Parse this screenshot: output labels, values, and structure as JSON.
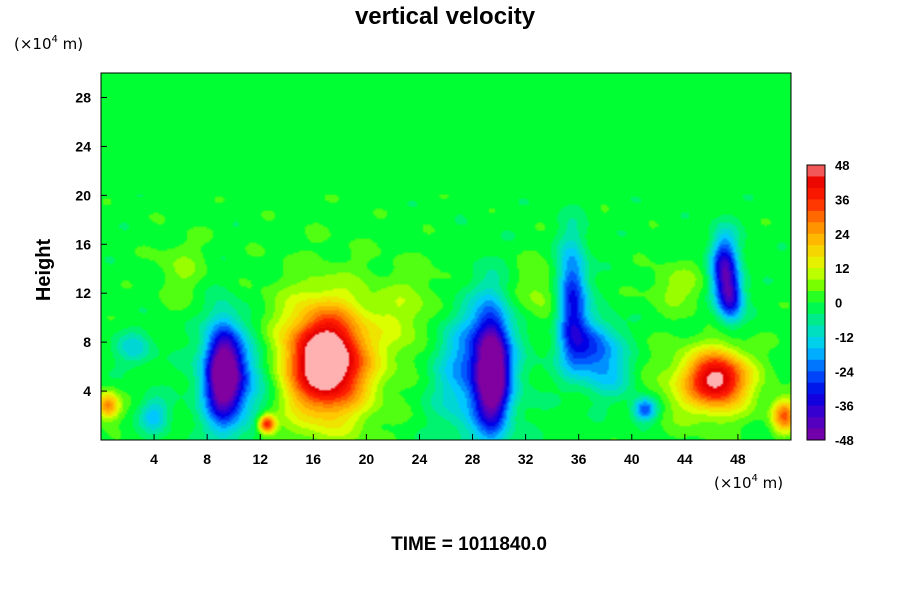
{
  "chart_data": {
    "type": "heatmap",
    "title": "vertical velocity",
    "ylabel": "Height",
    "x_unit_prefix": "(×10",
    "x_unit_exp": "4",
    "x_unit_suffix": " m)",
    "y_unit_prefix": "(×10",
    "y_unit_exp": "4",
    "y_unit_suffix": " m)",
    "xlim": [
      0,
      52
    ],
    "ylim": [
      0,
      30
    ],
    "x_ticks": [
      4,
      8,
      12,
      16,
      20,
      24,
      28,
      32,
      36,
      40,
      44,
      48
    ],
    "y_ticks": [
      4,
      8,
      12,
      16,
      20,
      24,
      28
    ],
    "colorbar": {
      "min": -48,
      "max": 48,
      "ticks": [
        48,
        36,
        24,
        12,
        0,
        -12,
        -24,
        -36,
        -48
      ]
    },
    "features": [
      {
        "x": 17,
        "y": 6.5,
        "rx": 3.0,
        "ry": 4.2,
        "value": 50
      },
      {
        "x": 16.8,
        "y": 6.5,
        "rx": 5.0,
        "ry": 7.0,
        "value": 14
      },
      {
        "x": 9.2,
        "y": 5.5,
        "rx": 1.4,
        "ry": 4.5,
        "value": -44
      },
      {
        "x": 10.2,
        "y": 5.0,
        "rx": 2.8,
        "ry": 4.0,
        "value": -24
      },
      {
        "x": 29.5,
        "y": 5.5,
        "rx": 1.3,
        "ry": 5.0,
        "value": -48
      },
      {
        "x": 28.3,
        "y": 6.0,
        "rx": 3.2,
        "ry": 6.0,
        "value": -24
      },
      {
        "x": 35.5,
        "y": 11.5,
        "rx": 1.2,
        "ry": 5.0,
        "value": -32
      },
      {
        "x": 37,
        "y": 7.5,
        "rx": 2.2,
        "ry": 2.5,
        "value": -26
      },
      {
        "x": 47,
        "y": 14,
        "rx": 1.1,
        "ry": 3.0,
        "value": -38
      },
      {
        "x": 47.5,
        "y": 11.5,
        "rx": 1.0,
        "ry": 2.0,
        "value": -28
      },
      {
        "x": 46.5,
        "y": 5.0,
        "rx": 2.3,
        "ry": 2.3,
        "value": 38
      },
      {
        "x": 45.5,
        "y": 4.5,
        "rx": 4.0,
        "ry": 3.5,
        "value": 14
      },
      {
        "x": 12.5,
        "y": 1.3,
        "rx": 0.7,
        "ry": 0.8,
        "value": 40
      },
      {
        "x": 51.5,
        "y": 2.0,
        "rx": 1.0,
        "ry": 1.5,
        "value": 30
      },
      {
        "x": 0.5,
        "y": 2.8,
        "rx": 1.0,
        "ry": 1.2,
        "value": 28
      },
      {
        "x": 4,
        "y": 2.0,
        "rx": 1.2,
        "ry": 1.5,
        "value": -16
      },
      {
        "x": 2.5,
        "y": 7.5,
        "rx": 1.5,
        "ry": 1.5,
        "value": -12
      },
      {
        "x": 41,
        "y": 2.5,
        "rx": 1.0,
        "ry": 1.0,
        "value": -28
      },
      {
        "x": 23,
        "y": 10,
        "rx": 2.5,
        "ry": 4.0,
        "value": 8
      },
      {
        "x": 33,
        "y": 12,
        "rx": 2.0,
        "ry": 3.0,
        "value": 8
      },
      {
        "x": 43.5,
        "y": 12.5,
        "rx": 2.5,
        "ry": 2.0,
        "value": 8
      },
      {
        "x": 38.5,
        "y": 5.0,
        "rx": 2.0,
        "ry": 2.0,
        "value": -10
      },
      {
        "x": 6,
        "y": 14,
        "rx": 2.0,
        "ry": 3.0,
        "value": 6
      },
      {
        "x": 26,
        "y": 12,
        "rx": 2.0,
        "ry": 3.0,
        "value": 4
      }
    ]
  },
  "caption": {
    "time_label": "TIME = 1011840.0"
  },
  "colors": {
    "background": "#00ff33",
    "axis": "#000000"
  }
}
